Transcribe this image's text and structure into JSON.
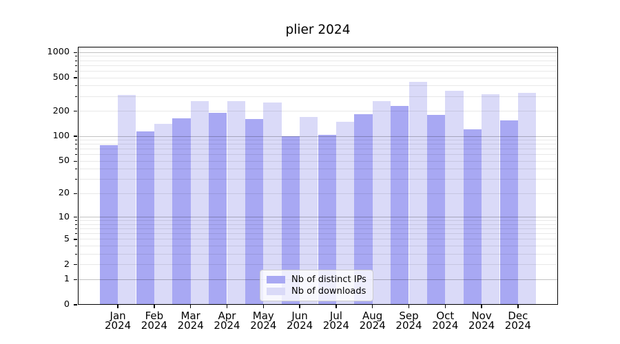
{
  "chart_data": {
    "type": "bar",
    "title": "plier 2024",
    "categories": [
      "Jan 2024",
      "Feb 2024",
      "Mar 2024",
      "Apr 2024",
      "May 2024",
      "Jun 2024",
      "Jul 2024",
      "Aug 2024",
      "Sep 2024",
      "Oct 2024",
      "Nov 2024",
      "Dec 2024"
    ],
    "x_tick_line1": [
      "Jan",
      "Feb",
      "Mar",
      "Apr",
      "May",
      "Jun",
      "Jul",
      "Aug",
      "Sep",
      "Oct",
      "Nov",
      "Dec"
    ],
    "x_tick_line2": [
      "2024",
      "2024",
      "2024",
      "2024",
      "2024",
      "2024",
      "2024",
      "2024",
      "2024",
      "2024",
      "2024",
      "2024"
    ],
    "series": [
      {
        "name": "Nb of distinct IPs",
        "color": "#a8a8f3",
        "values": [
          78,
          115,
          165,
          190,
          160,
          100,
          105,
          185,
          230,
          180,
          120,
          155
        ]
      },
      {
        "name": "Nb of downloads",
        "color": "#dadaf8",
        "values": [
          310,
          140,
          265,
          265,
          255,
          170,
          150,
          265,
          450,
          350,
          320,
          330
        ]
      }
    ],
    "xlabel": "",
    "ylabel": "",
    "yscale": "log10(1+x)",
    "y_tick_values": [
      0,
      1,
      2,
      5,
      10,
      20,
      50,
      100,
      200,
      500,
      1000
    ],
    "y_tick_labels": [
      "0",
      "1",
      "2",
      "5",
      "10",
      "20",
      "50",
      "100",
      "200",
      "500",
      "1000"
    ],
    "ylim": [
      0,
      1180
    ],
    "grid": "horizontal; major gridlines at powers of 10, minor at 2-9 multiples",
    "legend": {
      "position": "lower center",
      "entries": [
        "Nb of distinct IPs",
        "Nb of downloads"
      ]
    }
  }
}
